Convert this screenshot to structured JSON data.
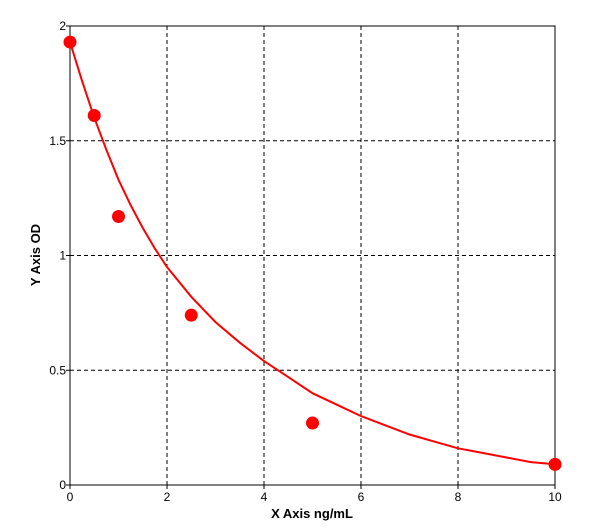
{
  "chart_data": {
    "type": "scatter",
    "title": "",
    "xlabel": "X Axis ng/mL",
    "ylabel": "Y Axis OD",
    "xlim": [
      0,
      10
    ],
    "ylim": [
      0,
      2
    ],
    "x_ticks": [
      0,
      2,
      4,
      6,
      8,
      10
    ],
    "y_ticks": [
      0,
      0.5,
      1,
      1.5,
      2
    ],
    "x_tick_labels": [
      "0",
      "2",
      "4",
      "6",
      "8",
      "10"
    ],
    "y_tick_labels": [
      "0",
      "0.5",
      "1",
      "1.5",
      "2"
    ],
    "grid": true,
    "grid_style": "dashed",
    "series": [
      {
        "kind": "points",
        "color": "#ff0000",
        "x": [
          0,
          0.5,
          1,
          2.5,
          5,
          10
        ],
        "y": [
          1.93,
          1.61,
          1.17,
          0.74,
          0.27,
          0.09
        ]
      },
      {
        "kind": "fitted-curve",
        "color": "#ff0000",
        "x": [
          0,
          0.25,
          0.5,
          0.75,
          1,
          1.25,
          1.5,
          1.75,
          2,
          2.5,
          3,
          3.5,
          4,
          4.5,
          5,
          5.5,
          6,
          6.5,
          7,
          7.5,
          8,
          8.5,
          9,
          9.5,
          10
        ],
        "y": [
          1.93,
          1.76,
          1.6,
          1.46,
          1.33,
          1.22,
          1.12,
          1.03,
          0.95,
          0.82,
          0.71,
          0.62,
          0.54,
          0.47,
          0.4,
          0.35,
          0.3,
          0.26,
          0.22,
          0.19,
          0.16,
          0.14,
          0.12,
          0.1,
          0.09
        ]
      }
    ]
  }
}
